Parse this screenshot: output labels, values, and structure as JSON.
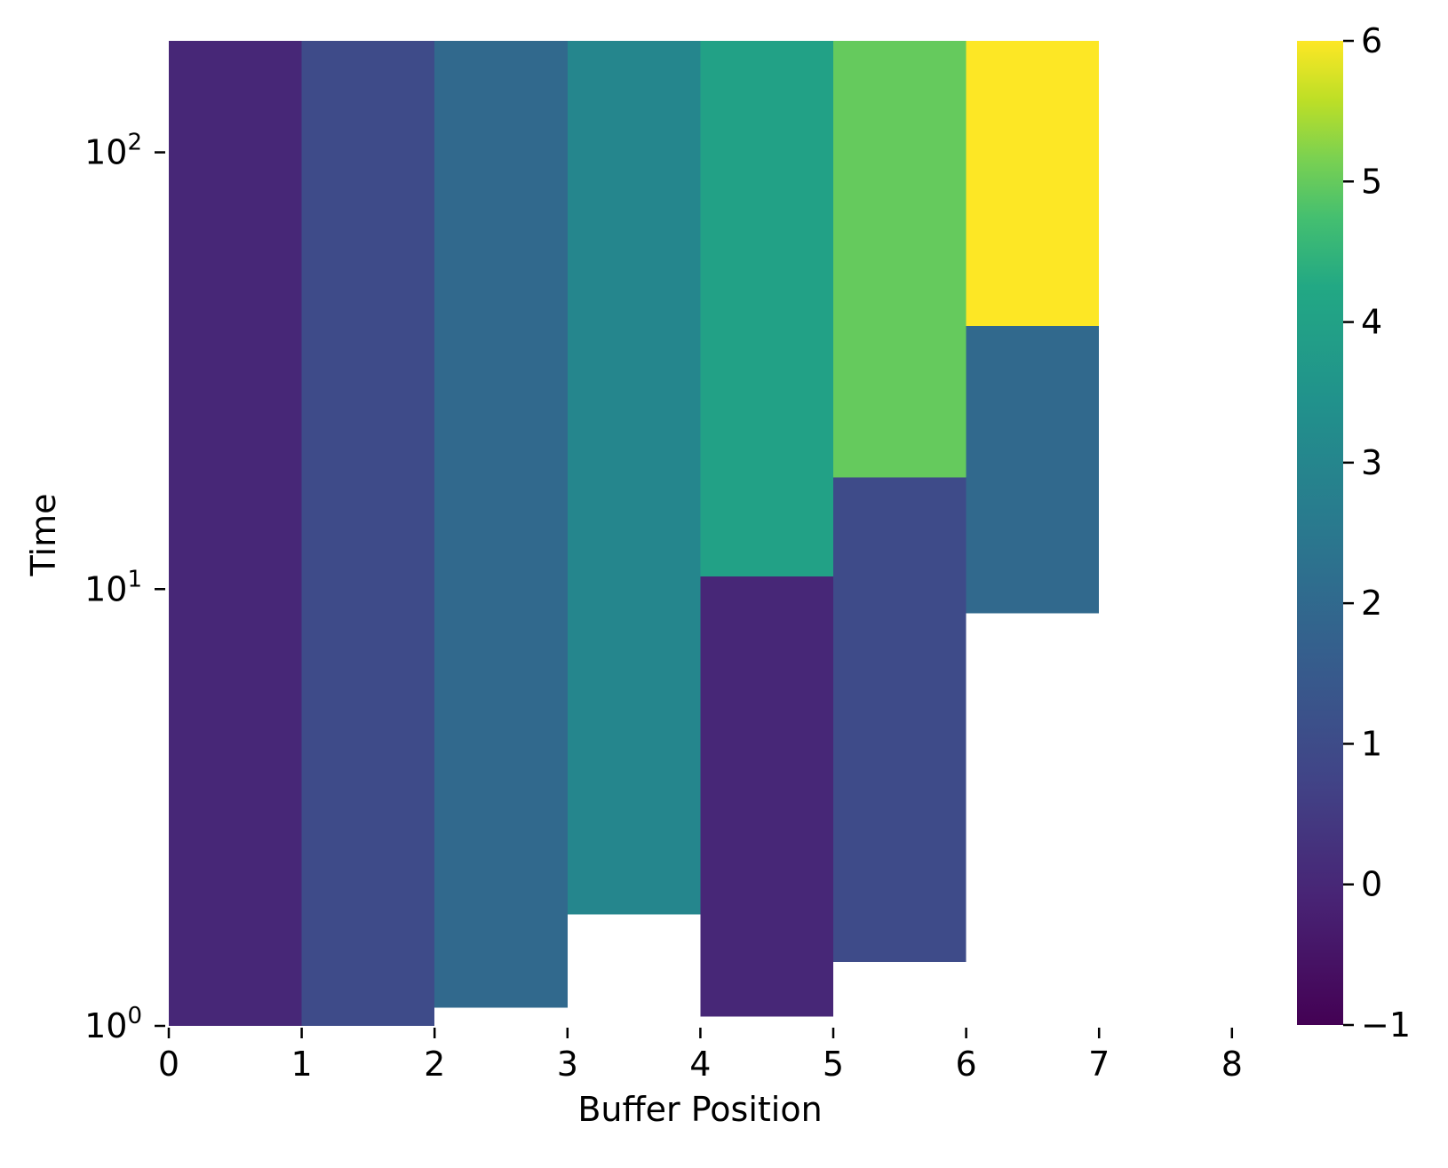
{
  "chart_data": {
    "type": "heatmap",
    "title": "",
    "xlabel": "Buffer Position",
    "ylabel": "Time",
    "x_ticks": [
      0,
      1,
      2,
      3,
      4,
      5,
      6,
      7,
      8
    ],
    "y_scale": "log",
    "y_ticks": [
      {
        "value": 1,
        "base": "10",
        "exp": "0"
      },
      {
        "value": 10,
        "base": "10",
        "exp": "1"
      },
      {
        "value": 100,
        "base": "10",
        "exp": "2"
      }
    ],
    "xlim": [
      0,
      8.5
    ],
    "ylim": [
      1,
      180
    ],
    "colormap": "viridis",
    "colorbar": {
      "vmin": -1,
      "vmax": 6,
      "ticks": [
        -1,
        0,
        1,
        2,
        3,
        4,
        5,
        6
      ],
      "tick_labels": [
        "−1",
        "0",
        "1",
        "2",
        "3",
        "4",
        "5",
        "6"
      ]
    },
    "cells": [
      {
        "x0": 0,
        "x1": 1,
        "y0": 1.0,
        "y1": 180,
        "value": 0
      },
      {
        "x0": 1,
        "x1": 2,
        "y0": 1.0,
        "y1": 180,
        "value": 1
      },
      {
        "x0": 2,
        "x1": 3,
        "y0": 1.1,
        "y1": 180,
        "value": 2
      },
      {
        "x0": 3,
        "x1": 4,
        "y0": 1.8,
        "y1": 180,
        "value": 3
      },
      {
        "x0": 4,
        "x1": 5,
        "y0": 1.05,
        "y1": 10.7,
        "value": 0
      },
      {
        "x0": 4,
        "x1": 5,
        "y0": 10.7,
        "y1": 180,
        "value": 4
      },
      {
        "x0": 5,
        "x1": 6,
        "y0": 1.4,
        "y1": 18,
        "value": 1
      },
      {
        "x0": 5,
        "x1": 6,
        "y0": 18,
        "y1": 180,
        "value": 5
      },
      {
        "x0": 6,
        "x1": 7,
        "y0": 8.8,
        "y1": 40,
        "value": 2
      },
      {
        "x0": 6,
        "x1": 7,
        "y0": 40,
        "y1": 180,
        "value": 6
      }
    ]
  }
}
